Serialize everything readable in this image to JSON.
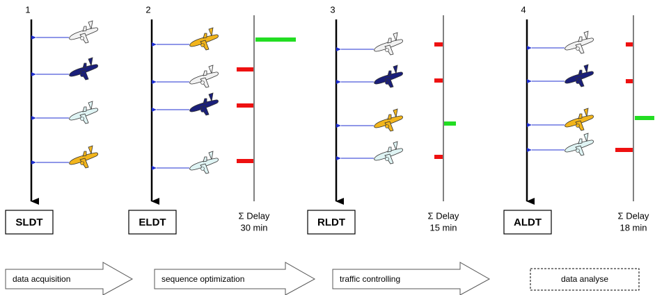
{
  "panels": [
    {
      "number": "1",
      "label": "SLDT"
    },
    {
      "number": "2",
      "label": "ELDT",
      "delay": {
        "title": "Σ Delay",
        "total": "30 min"
      }
    },
    {
      "number": "3",
      "label": "RLDT",
      "delay": {
        "title": "Σ Delay",
        "total": "15 min"
      }
    },
    {
      "number": "4",
      "label": "ALDT",
      "delay": {
        "title": "Σ Delay",
        "total": "18 min"
      }
    }
  ],
  "process": [
    "data acquisition",
    "sequence optimization",
    "traffic controlling",
    "data analyse"
  ]
}
